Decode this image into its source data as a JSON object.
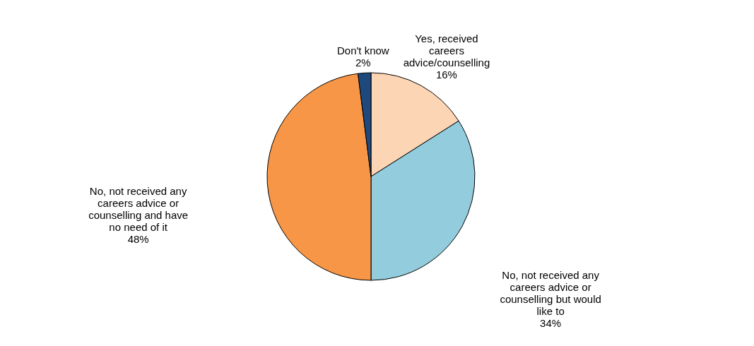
{
  "chart_data": {
    "type": "pie",
    "categories": [
      "Yes, received careers advice/counselling",
      "No, not received any careers advice or counselling but would like to",
      "No, not received any careers advice or counselling and have no need of it",
      "Don't know"
    ],
    "values": [
      16,
      34,
      48,
      2
    ],
    "value_labels": [
      "16%",
      "34%",
      "48%",
      "2%"
    ],
    "colors": [
      "#fcd5b5",
      "#93cddd",
      "#f79646",
      "#1f497d"
    ]
  }
}
